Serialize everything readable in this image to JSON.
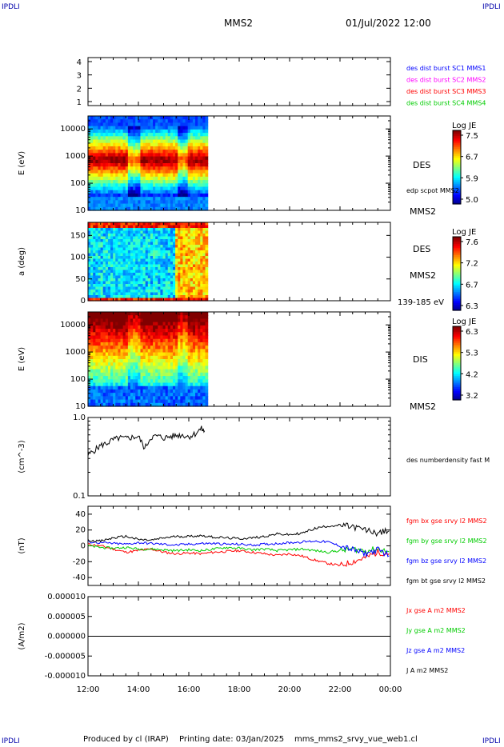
{
  "corner_text": "IPDLI",
  "header": {
    "spacecraft": "MMS2",
    "datetime": "01/Jul/2022 12:00"
  },
  "footer": {
    "produced_by": "Produced by cl (IRAP)",
    "printing_date": "Printing date: 03/Jan/2025",
    "filename": "mms_mms2_srvy_vue_web1.cl"
  },
  "colors": {
    "blue": "#0000ff",
    "magenta": "#ff00ff",
    "red": "#ff0000",
    "green": "#00cc00",
    "black": "#000000"
  },
  "chart_data": [
    {
      "type": "table",
      "ylabel": "",
      "yticks": [
        "4",
        "3",
        "2",
        "1"
      ],
      "legend": [
        {
          "text": "des dist burst SC1 MMS1",
          "color": "#0000ff"
        },
        {
          "text": "des dist burst SC2 MMS2",
          "color": "#ff00ff"
        },
        {
          "text": "des dist burst SC3 MMS3",
          "color": "#ff0000"
        },
        {
          "text": "des dist burst SC4 MMS4",
          "color": "#00cc00"
        }
      ]
    },
    {
      "type": "heatmap",
      "ylabel": "E (eV)",
      "yscale": "log",
      "ylim": [
        10,
        30000
      ],
      "yticks": [
        "10000",
        "1000",
        "100",
        "10"
      ],
      "instrument": "DES",
      "overlay": "edp scpot MMS2",
      "spacecraft": "MMS2",
      "colorbar": {
        "title": "Log JE",
        "ticks": [
          "7.5",
          "6.7",
          "5.9",
          "5.0"
        ],
        "range": [
          5.0,
          7.5
        ]
      },
      "data_extent_hours": [
        12.0,
        16.75
      ]
    },
    {
      "type": "heatmap",
      "ylabel": "a (deg)",
      "ylim": [
        0,
        180
      ],
      "yticks": [
        "150",
        "100",
        "50",
        "0"
      ],
      "instrument": "DES",
      "spacecraft": "MMS2",
      "energy_range": "139-185 eV",
      "colorbar": {
        "title": "Log JE",
        "ticks": [
          "7.6",
          "7.2",
          "6.7",
          "6.3"
        ],
        "range": [
          6.3,
          7.6
        ]
      },
      "data_extent_hours": [
        12.0,
        16.75
      ]
    },
    {
      "type": "heatmap",
      "ylabel": "E (eV)",
      "yscale": "log",
      "ylim": [
        10,
        30000
      ],
      "yticks": [
        "10000",
        "1000",
        "100",
        "10"
      ],
      "instrument": "DIS",
      "spacecraft": "MMS2",
      "colorbar": {
        "title": "Log JE",
        "ticks": [
          "6.3",
          "5.3",
          "4.2",
          "3.2"
        ],
        "range": [
          3.2,
          6.3
        ]
      },
      "data_extent_hours": [
        12.0,
        16.75
      ]
    },
    {
      "type": "line",
      "ylabel": "(cm^-3)",
      "yscale": "log",
      "ylim": [
        0.1,
        1.0
      ],
      "yticks": [
        "1.0",
        "0.1"
      ],
      "series": [
        {
          "name": "des numberdensity fast M",
          "color": "#000000",
          "x": [
            12.0,
            12.25,
            12.5,
            12.75,
            13.0,
            13.25,
            13.5,
            13.75,
            14.0,
            14.25,
            14.5,
            14.75,
            15.0,
            15.25,
            15.5,
            15.75,
            16.0,
            16.25,
            16.5,
            16.65
          ],
          "y": [
            0.33,
            0.38,
            0.44,
            0.47,
            0.52,
            0.55,
            0.54,
            0.56,
            0.57,
            0.4,
            0.56,
            0.58,
            0.55,
            0.57,
            0.59,
            0.6,
            0.57,
            0.62,
            0.72,
            0.65
          ]
        }
      ]
    },
    {
      "type": "line",
      "ylabel": "(nT)",
      "ylim": [
        -50,
        50
      ],
      "yticks": [
        "40",
        "20",
        "0",
        "-20",
        "-40"
      ],
      "x_hours": [
        12,
        12.5,
        13,
        13.5,
        14,
        14.5,
        15,
        15.5,
        16,
        16.5,
        17,
        17.5,
        18,
        18.5,
        19,
        19.5,
        20,
        20.5,
        21,
        21.5,
        22,
        22.5,
        23,
        23.5,
        24
      ],
      "series": [
        {
          "name": "fgm bx gse srvy l2 MMS2",
          "color": "#ff0000",
          "values": [
            2,
            0,
            -4,
            -8,
            -6,
            -4,
            -8,
            -10,
            -9,
            -10,
            -8,
            -7,
            -6,
            -8,
            -10,
            -12,
            -10,
            -13,
            -18,
            -22,
            -25,
            -20,
            -15,
            -8,
            -10
          ]
        },
        {
          "name": "fgm by gse srvy l2 MMS2",
          "color": "#00cc00",
          "values": [
            0,
            -2,
            -3,
            -2,
            -4,
            -4,
            -5,
            -6,
            -5,
            -6,
            -4,
            -2,
            -3,
            -5,
            -4,
            -6,
            -5,
            -4,
            -6,
            -8,
            -6,
            -4,
            -6,
            -4,
            -8
          ]
        },
        {
          "name": "fgm bz gse srvy l2 MMS2",
          "color": "#0000ff",
          "values": [
            5,
            4,
            3,
            2,
            4,
            3,
            2,
            1,
            2,
            3,
            3,
            2,
            2,
            1,
            2,
            3,
            4,
            5,
            6,
            5,
            0,
            -5,
            -10,
            -5,
            -12
          ]
        },
        {
          "name": "fgm bt gse srvy l2 MMS2",
          "color": "#000000",
          "values": [
            7,
            6,
            10,
            12,
            8,
            7,
            10,
            12,
            12,
            13,
            11,
            10,
            9,
            10,
            12,
            15,
            14,
            16,
            22,
            25,
            26,
            24,
            20,
            16,
            20
          ]
        }
      ]
    },
    {
      "type": "line",
      "ylabel": "(A/m2)",
      "ylim": [
        -1e-05,
        1e-05
      ],
      "yticks": [
        "0.000010",
        "0.000005",
        "0.000000",
        "-0.000005",
        "-0.000010"
      ],
      "series": [
        {
          "name": "Jx gse A m2 MMS2",
          "color": "#ff0000",
          "values": [
            0,
            0
          ]
        },
        {
          "name": "Jy gse A m2 MMS2",
          "color": "#00cc00",
          "values": [
            0,
            0
          ]
        },
        {
          "name": "Jz gse A m2 MMS2",
          "color": "#0000ff",
          "values": [
            0,
            0
          ]
        },
        {
          "name": "J A m2 MMS2",
          "color": "#000000",
          "values": [
            0,
            0
          ]
        }
      ]
    }
  ],
  "xaxis": {
    "range_hours": [
      12,
      24
    ],
    "ticks": [
      "12:00",
      "14:00",
      "16:00",
      "18:00",
      "20:00",
      "22:00",
      "00:00"
    ]
  }
}
